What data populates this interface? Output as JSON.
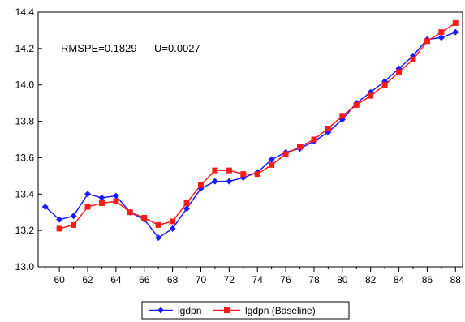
{
  "chart_data": {
    "type": "line",
    "annotation": {
      "rmspe": "RMSPE=0.1829",
      "u": "U=0.0027"
    },
    "ylim": [
      13.0,
      14.4
    ],
    "yticks": [
      "13.0",
      "13.2",
      "13.4",
      "13.6",
      "13.8",
      "14.0",
      "14.2",
      "14.4"
    ],
    "xlim": [
      58.5,
      88.5
    ],
    "xticks": [
      "60",
      "62",
      "64",
      "66",
      "68",
      "70",
      "72",
      "74",
      "76",
      "78",
      "80",
      "82",
      "84",
      "86",
      "88"
    ],
    "grid": false,
    "legend_position": "bottom",
    "series": [
      {
        "name": "lgdpn",
        "color": "#1a1aff",
        "marker": "diamond",
        "x": [
          59,
          60,
          61,
          62,
          63,
          64,
          65,
          66,
          67,
          68,
          69,
          70,
          71,
          72,
          73,
          74,
          75,
          76,
          77,
          78,
          79,
          80,
          81,
          82,
          83,
          84,
          85,
          86,
          87,
          88
        ],
        "y": [
          13.33,
          13.26,
          13.28,
          13.4,
          13.38,
          13.39,
          13.3,
          13.26,
          13.16,
          13.21,
          13.32,
          13.43,
          13.47,
          13.47,
          13.49,
          13.52,
          13.59,
          13.63,
          13.65,
          13.69,
          13.74,
          13.81,
          13.9,
          13.96,
          14.02,
          14.09,
          14.16,
          14.25,
          14.26,
          14.29
        ]
      },
      {
        "name": "lgdpn (Baseline)",
        "color": "#ff1a1a",
        "marker": "square",
        "x": [
          60,
          61,
          62,
          63,
          64,
          65,
          66,
          67,
          68,
          69,
          70,
          71,
          72,
          73,
          74,
          75,
          76,
          77,
          78,
          79,
          80,
          81,
          82,
          83,
          84,
          85,
          86,
          87,
          88
        ],
        "y": [
          13.21,
          13.23,
          13.33,
          13.35,
          13.36,
          13.3,
          13.27,
          13.23,
          13.25,
          13.35,
          13.45,
          13.53,
          13.53,
          13.51,
          13.51,
          13.56,
          13.62,
          13.66,
          13.7,
          13.76,
          13.83,
          13.89,
          13.94,
          14.0,
          14.07,
          14.14,
          14.24,
          14.29,
          14.34
        ]
      }
    ]
  }
}
